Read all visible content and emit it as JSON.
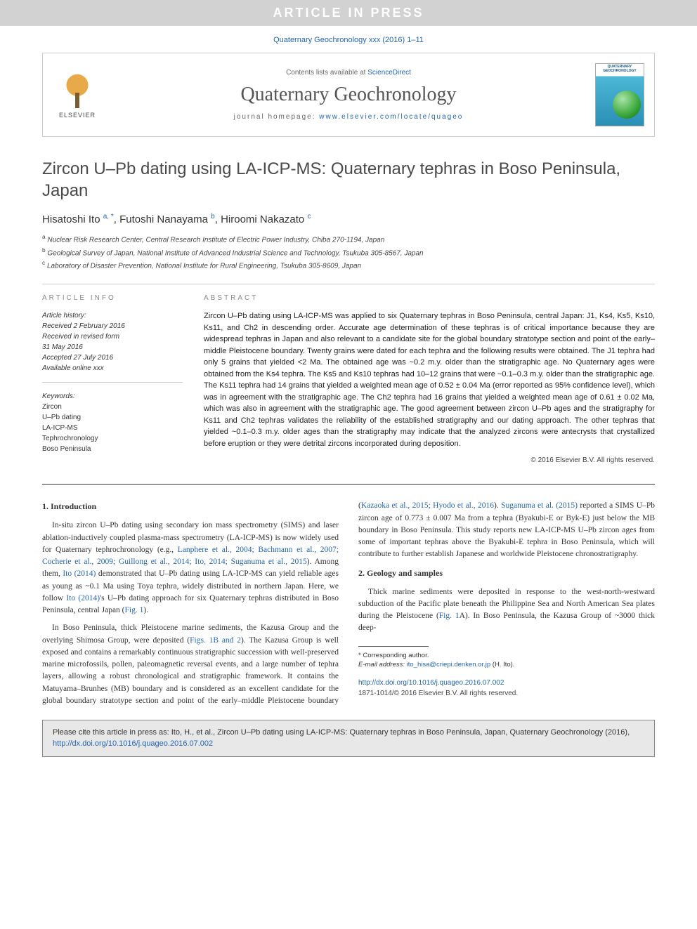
{
  "banner": {
    "text": "ARTICLE IN PRESS"
  },
  "top_cite": "Quaternary Geochronology xxx (2016) 1–11",
  "journal_header": {
    "publisher_logo_label": "ELSEVIER",
    "contents_prefix": "Contents lists available at ",
    "contents_link": "ScienceDirect",
    "journal_name": "Quaternary Geochronology",
    "homepage_prefix": "journal homepage: ",
    "homepage_url": "www.elsevier.com/locate/quageo",
    "cover_label": "QUATERNARY GEOCHRONOLOGY"
  },
  "article": {
    "title": "Zircon U–Pb dating using LA-ICP-MS: Quaternary tephras in Boso Peninsula, Japan",
    "authors": [
      {
        "name": "Hisatoshi Ito",
        "sup": "a, *"
      },
      {
        "name": "Futoshi Nanayama",
        "sup": "b"
      },
      {
        "name": "Hiroomi Nakazato",
        "sup": "c"
      }
    ],
    "affiliations": [
      {
        "sup": "a",
        "text": "Nuclear Risk Research Center, Central Research Institute of Electric Power Industry, Chiba 270-1194, Japan"
      },
      {
        "sup": "b",
        "text": "Geological Survey of Japan, National Institute of Advanced Industrial Science and Technology, Tsukuba 305-8567, Japan"
      },
      {
        "sup": "c",
        "text": "Laboratory of Disaster Prevention, National Institute for Rural Engineering, Tsukuba 305-8609, Japan"
      }
    ]
  },
  "info": {
    "article_info_label": "ARTICLE INFO",
    "abstract_label": "ABSTRACT",
    "history_label": "Article history:",
    "history": [
      "Received 2 February 2016",
      "Received in revised form",
      "31 May 2016",
      "Accepted 27 July 2016",
      "Available online xxx"
    ],
    "keywords_label": "Keywords:",
    "keywords": [
      "Zircon",
      "U–Pb dating",
      "LA-ICP-MS",
      "Tephrochronology",
      "Boso Peninsula"
    ],
    "abstract": "Zircon U–Pb dating using LA-ICP-MS was applied to six Quaternary tephras in Boso Peninsula, central Japan: J1, Ks4, Ks5, Ks10, Ks11, and Ch2 in descending order. Accurate age determination of these tephras is of critical importance because they are widespread tephras in Japan and also relevant to a candidate site for the global boundary stratotype section and point of the early–middle Pleistocene boundary. Twenty grains were dated for each tephra and the following results were obtained. The J1 tephra had only 5 grains that yielded <2 Ma. The obtained age was ~0.2 m.y. older than the stratigraphic age. No Quaternary ages were obtained from the Ks4 tephra. The Ks5 and Ks10 tephras had 10–12 grains that were ~0.1–0.3 m.y. older than the stratigraphic age. The Ks11 tephra had 14 grains that yielded a weighted mean age of 0.52 ± 0.04 Ma (error reported as 95% confidence level), which was in agreement with the stratigraphic age. The Ch2 tephra had 16 grains that yielded a weighted mean age of 0.61 ± 0.02 Ma, which was also in agreement with the stratigraphic age. The good agreement between zircon U–Pb ages and the stratigraphy for Ks11 and Ch2 tephras validates the reliability of the established stratigraphy and our dating approach. The other tephras that yielded ~0.1–0.3 m.y. older ages than the stratigraphy may indicate that the analyzed zircons were antecrysts that crystallized before eruption or they were detrital zircons incorporated during deposition.",
    "copyright": "© 2016 Elsevier B.V. All rights reserved."
  },
  "body": {
    "sec1_heading": "1. Introduction",
    "sec1_p1_a": "In-situ zircon U–Pb dating using secondary ion mass spectrometry (SIMS) and laser ablation-inductively coupled plasma-mass spectrometry (LA-ICP-MS) is now widely used for Quaternary tephrochronology (e.g., ",
    "sec1_p1_link1": "Lanphere et al., 2004; Bachmann et al., 2007; Cocherie et al., 2009; Guillong et al., 2014; Ito, 2014; Suganuma et al., 2015",
    "sec1_p1_b": "). Among them, ",
    "sec1_p1_link2": "Ito (2014)",
    "sec1_p1_c": " demonstrated that U–Pb dating using LA-ICP-MS can yield reliable ages as young as ~0.1 Ma using Toya tephra, widely distributed in northern Japan. Here, we follow ",
    "sec1_p1_link3": "Ito (2014)",
    "sec1_p1_d": "'s U–Pb dating approach for six Quaternary tephras distributed in Boso Peninsula, central Japan (",
    "sec1_p1_link4": "Fig. 1",
    "sec1_p1_e": ").",
    "sec1_p2_a": "In Boso Peninsula, thick Pleistocene marine sediments, the Kazusa Group and the overlying Shimosa Group, were deposited (",
    "sec1_p2_link1": "Figs. 1B and 2",
    "sec1_p2_b": "). The Kazusa Group is well exposed and contains a remarkably continuous stratigraphic succession with well-preserved marine microfossils, pollen, paleomagnetic reversal events, and a large number of tephra layers, allowing a robust chronological and stratigraphic framework. It contains the Matuyama–Brunhes (MB) boundary and is considered as an excellent candidate for the global boundary stratotype section and point of the early–middle Pleistocene boundary (",
    "sec1_p2_link2": "Kazaoka et al., 2015; Hyodo et al., 2016",
    "sec1_p2_c": "). ",
    "sec1_p2_link3": "Suganuma et al. (2015)",
    "sec1_p2_d": " reported a SIMS U–Pb zircon age of 0.773 ± 0.007 Ma from a tephra (Byakubi-E or Byk-E) just below the MB boundary in Boso Peninsula. This study reports new LA-ICP-MS U–Pb zircon ages from some of important tephras above the Byakubi-E tephra in Boso Peninsula, which will contribute to further establish Japanese and worldwide Pleistocene chronostratigraphy.",
    "sec2_heading": "2. Geology and samples",
    "sec2_p1_a": "Thick marine sediments were deposited in response to the west-north-westward subduction of the Pacific plate beneath the Philippine Sea and North American Sea plates during the Pleistocene (",
    "sec2_p1_link1": "Fig. 1",
    "sec2_p1_b": "A). In Boso Peninsula, the Kazusa Group of ~3000 thick deep-"
  },
  "footnotes": {
    "corr_label": "* Corresponding author.",
    "email_label": "E-mail address:",
    "email": "ito_hisa@criepi.denken.or.jp",
    "email_owner": "(H. Ito)."
  },
  "doi": {
    "url": "http://dx.doi.org/10.1016/j.quageo.2016.07.002",
    "copy": "1871-1014/© 2016 Elsevier B.V. All rights reserved."
  },
  "citation_box": {
    "prefix": "Please cite this article in press as: Ito, H., et al., Zircon U–Pb dating using LA-ICP-MS: Quaternary tephras in Boso Peninsula, Japan, Quaternary Geochronology (2016), ",
    "link": "http://dx.doi.org/10.1016/j.quageo.2016.07.002"
  },
  "colors": {
    "banner_bg": "#d2d2d2",
    "banner_fg": "#ffffff",
    "link": "#2265b3",
    "text": "#333333",
    "rule": "#cccccc",
    "citebox_bg": "#e8e8e8",
    "citebox_border": "#888888"
  },
  "typography": {
    "title_fontsize": 24,
    "authors_fontsize": 15,
    "body_fontsize": 11.5,
    "abstract_fontsize": 11,
    "small_fontsize": 10,
    "tiny_fontsize": 9.5
  }
}
